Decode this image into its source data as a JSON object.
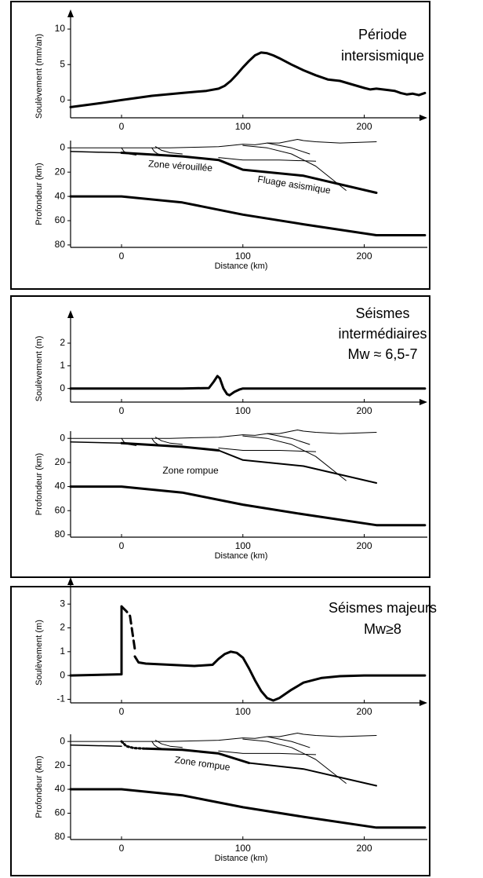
{
  "chart_data": [
    {
      "type": "line",
      "title": [
        "Période",
        "intersismique"
      ],
      "ylabel": "Soulèvement  (mm/an)",
      "arrows": true,
      "color": "#000",
      "xlim": [
        -42,
        252
      ],
      "xticks": [
        0,
        100,
        200
      ],
      "ylim": [
        -2.5,
        11
      ],
      "yticks": [
        0,
        5,
        10
      ],
      "series": [
        {
          "x": [
            -42,
            -20,
            0,
            25,
            50,
            70,
            80,
            85,
            90,
            95,
            100,
            105,
            110,
            115,
            120,
            125,
            130,
            140,
            150,
            160,
            170,
            180,
            190,
            200,
            205,
            210,
            220,
            225,
            230,
            235,
            240,
            245,
            250
          ],
          "values": [
            -1,
            -0.5,
            0,
            0.6,
            1,
            1.3,
            1.6,
            2,
            2.7,
            3.6,
            4.6,
            5.5,
            6.3,
            6.7,
            6.6,
            6.3,
            5.9,
            5,
            4.2,
            3.5,
            2.9,
            2.7,
            2.2,
            1.7,
            1.5,
            1.6,
            1.4,
            1.3,
            1,
            0.8,
            0.9,
            0.7,
            1
          ],
          "width": 3,
          "dash": "none"
        }
      ]
    },
    {
      "type": "line",
      "ylabel": "Profondeur (km)",
      "xlabel": "Distance (km)",
      "arrows": false,
      "invert_y": true,
      "color": "#000",
      "annotations": [
        "Zone vérouillée",
        "Fluage asismique"
      ],
      "xlim": [
        -42,
        252
      ],
      "xticks": [
        0,
        100,
        200
      ],
      "ylim": [
        -6,
        82
      ],
      "yticks": [
        0,
        20,
        40,
        60,
        80
      ],
      "series": [
        {
          "x": [
            -42,
            20,
            40,
            60,
            80,
            90,
            100,
            110,
            120,
            130,
            140,
            145,
            150,
            160,
            180,
            210
          ],
          "values": [
            0,
            0,
            0,
            -0.5,
            -1,
            -2,
            -3,
            -2.5,
            -4,
            -4,
            -6,
            -7,
            -6,
            -5,
            -4,
            -5
          ],
          "width": 1,
          "dash": "none"
        },
        {
          "x": [
            0,
            2,
            6,
            12
          ],
          "values": [
            0,
            3,
            5,
            6
          ],
          "width": 1,
          "dash": "none"
        },
        {
          "x": [
            25,
            27,
            30,
            34
          ],
          "values": [
            0,
            3,
            5,
            6
          ],
          "width": 1,
          "dash": "none"
        },
        {
          "x": [
            28,
            33,
            40,
            50
          ],
          "values": [
            -1,
            2,
            4,
            5
          ],
          "width": 1,
          "dash": "none"
        },
        {
          "x": [
            100,
            120,
            140,
            160,
            185
          ],
          "values": [
            -2,
            0,
            5,
            15,
            35
          ],
          "width": 1,
          "dash": "none"
        },
        {
          "x": [
            80,
            100,
            130,
            160
          ],
          "values": [
            8,
            10,
            10,
            11
          ],
          "width": 1,
          "dash": "none"
        },
        {
          "x": [
            120,
            140,
            155
          ],
          "values": [
            -4,
            0,
            5
          ],
          "width": 1,
          "dash": "none"
        },
        {
          "x": [
            -42,
            0
          ],
          "values": [
            3,
            4
          ],
          "width": 1.5,
          "dash": "none"
        },
        {
          "x": [
            0,
            50,
            80,
            100,
            150,
            210
          ],
          "values": [
            4,
            7,
            10,
            18,
            23,
            37
          ],
          "width": 3,
          "dash": "none"
        },
        {
          "x": [
            -42,
            0,
            50,
            100,
            150,
            210,
            250
          ],
          "values": [
            40,
            40,
            45,
            55,
            63,
            72,
            72
          ],
          "width": 3,
          "dash": "none"
        }
      ]
    },
    {
      "type": "line",
      "title": [
        "Séismes",
        "intermédiaires",
        "Mw ≈ 6,5-7"
      ],
      "ylabel": "Soulèvement (m)",
      "arrows": true,
      "color": "#000",
      "xlim": [
        -42,
        252
      ],
      "xticks": [
        0,
        100,
        200
      ],
      "ylim": [
        -0.6,
        2.9
      ],
      "yticks": [
        0,
        1,
        2
      ],
      "series": [
        {
          "x": [
            -42,
            0,
            50,
            72,
            76,
            79,
            81,
            84,
            87,
            89,
            93,
            97,
            100,
            150,
            250
          ],
          "values": [
            0,
            0,
            0,
            0.02,
            0.3,
            0.55,
            0.45,
            0,
            -0.25,
            -0.3,
            -0.15,
            -0.05,
            0,
            0,
            0
          ],
          "width": 3,
          "dash": "none"
        }
      ]
    },
    {
      "type": "line",
      "ylabel": "Profondeur (km)",
      "xlabel": "Distance (km)",
      "arrows": false,
      "invert_y": true,
      "color": "#000",
      "annotations": [
        "Zone rompue"
      ],
      "xlim": [
        -42,
        252
      ],
      "xticks": [
        0,
        100,
        200
      ],
      "ylim": [
        -6,
        82
      ],
      "yticks": [
        0,
        20,
        40,
        60,
        80
      ],
      "series": [
        {
          "x": [
            -42,
            20,
            40,
            60,
            80,
            90,
            100,
            110,
            120,
            130,
            140,
            145,
            150,
            160,
            180,
            210
          ],
          "values": [
            0,
            0,
            0,
            -0.5,
            -1,
            -2,
            -3,
            -2.5,
            -4,
            -4,
            -6,
            -7,
            -6,
            -5,
            -4,
            -5
          ],
          "width": 1,
          "dash": "none"
        },
        {
          "x": [
            0,
            2,
            6,
            12
          ],
          "values": [
            0,
            3,
            5,
            6
          ],
          "width": 1,
          "dash": "none"
        },
        {
          "x": [
            25,
            27,
            30,
            34
          ],
          "values": [
            0,
            3,
            5,
            6
          ],
          "width": 1,
          "dash": "none"
        },
        {
          "x": [
            28,
            33,
            40,
            50
          ],
          "values": [
            -1,
            2,
            4,
            5
          ],
          "width": 1,
          "dash": "none"
        },
        {
          "x": [
            100,
            120,
            140,
            160,
            185
          ],
          "values": [
            -2,
            0,
            5,
            15,
            35
          ],
          "width": 1,
          "dash": "none"
        },
        {
          "x": [
            80,
            100,
            130,
            160
          ],
          "values": [
            8,
            10,
            10,
            11
          ],
          "width": 1,
          "dash": "none"
        },
        {
          "x": [
            120,
            140,
            155
          ],
          "values": [
            -4,
            0,
            5
          ],
          "width": 1,
          "dash": "none"
        },
        {
          "x": [
            -42,
            0
          ],
          "values": [
            3,
            4
          ],
          "width": 1.5,
          "dash": "none"
        },
        {
          "x": [
            0,
            50,
            80
          ],
          "values": [
            4,
            7,
            10
          ],
          "width": 3,
          "dash": "none"
        },
        {
          "x": [
            80,
            100,
            150,
            210
          ],
          "values": [
            10,
            18,
            23,
            37
          ],
          "width": 2,
          "dash": "none"
        },
        {
          "x": [
            -42,
            0,
            50,
            100,
            150,
            210,
            250
          ],
          "values": [
            40,
            40,
            45,
            55,
            63,
            72,
            72
          ],
          "width": 3,
          "dash": "none"
        }
      ]
    },
    {
      "type": "line",
      "title": [
        "Séismes majeurs",
        "Mw≥8"
      ],
      "ylabel": "Soulèvement (m)",
      "arrows": true,
      "color": "#000",
      "xlim": [
        -42,
        252
      ],
      "xticks": [
        0,
        100,
        200
      ],
      "ylim": [
        -1.15,
        3.6
      ],
      "yticks": [
        -1,
        0,
        1,
        2,
        3
      ],
      "series": [
        {
          "x": [
            -42,
            0,
            0
          ],
          "values": [
            0,
            0.05,
            2.9
          ],
          "width": 3,
          "dash": "none"
        },
        {
          "x": [
            0,
            4,
            7,
            9,
            11
          ],
          "values": [
            2.9,
            2.7,
            2.5,
            1.8,
            1.1
          ],
          "width": 3,
          "dash": "10,6"
        },
        {
          "x": [
            11,
            14,
            20,
            40,
            60,
            75,
            80,
            85,
            90,
            95,
            100,
            105,
            110,
            115,
            120,
            125,
            130,
            140,
            150,
            165,
            180,
            200,
            250
          ],
          "values": [
            0.8,
            0.55,
            0.5,
            0.45,
            0.4,
            0.45,
            0.7,
            0.9,
            1,
            0.95,
            0.75,
            0.3,
            -0.2,
            -0.65,
            -0.95,
            -1.05,
            -0.95,
            -0.6,
            -0.3,
            -0.1,
            -0.03,
            0,
            0
          ],
          "width": 3,
          "dash": "none"
        }
      ]
    },
    {
      "type": "line",
      "ylabel": "Profondeur (km)",
      "xlabel": "Distance (km)",
      "arrows": false,
      "invert_y": true,
      "color": "#000",
      "annotations": [
        "Zone rompue"
      ],
      "xlim": [
        -42,
        252
      ],
      "xticks": [
        0,
        100,
        200
      ],
      "ylim": [
        -6,
        82
      ],
      "yticks": [
        0,
        20,
        40,
        60,
        80
      ],
      "series": [
        {
          "x": [
            -42,
            20,
            40,
            60,
            80,
            90,
            100,
            110,
            120,
            130,
            140,
            145,
            150,
            160,
            180,
            210
          ],
          "values": [
            0,
            0,
            0,
            -0.5,
            -1,
            -2,
            -3,
            -2.5,
            -4,
            -4,
            -6,
            -7,
            -6,
            -5,
            -4,
            -5
          ],
          "width": 1,
          "dash": "none"
        },
        {
          "x": [
            25,
            27,
            30,
            34
          ],
          "values": [
            0,
            3,
            5,
            6
          ],
          "width": 1,
          "dash": "none"
        },
        {
          "x": [
            28,
            33,
            40,
            50
          ],
          "values": [
            -1,
            2,
            4,
            5
          ],
          "width": 1,
          "dash": "none"
        },
        {
          "x": [
            100,
            120,
            140,
            160,
            185
          ],
          "values": [
            -2,
            0,
            5,
            15,
            35
          ],
          "width": 1,
          "dash": "none"
        },
        {
          "x": [
            80,
            100,
            130,
            160
          ],
          "values": [
            8,
            10,
            10,
            11
          ],
          "width": 1,
          "dash": "none"
        },
        {
          "x": [
            120,
            140,
            155
          ],
          "values": [
            -4,
            0,
            5
          ],
          "width": 1,
          "dash": "none"
        },
        {
          "x": [
            -42,
            0
          ],
          "values": [
            3,
            4
          ],
          "width": 1.5,
          "dash": "none"
        },
        {
          "x": [
            0,
            4,
            10,
            20
          ],
          "values": [
            0,
            4,
            5.5,
            6
          ],
          "width": 3,
          "dash": "2,3"
        },
        {
          "x": [
            20,
            50,
            80,
            105
          ],
          "values": [
            6,
            7,
            10,
            18
          ],
          "width": 3,
          "dash": "none"
        },
        {
          "x": [
            105,
            150,
            210
          ],
          "values": [
            18,
            23,
            37
          ],
          "width": 2,
          "dash": "none"
        },
        {
          "x": [
            -42,
            0,
            50,
            100,
            150,
            210,
            250
          ],
          "values": [
            40,
            40,
            45,
            55,
            63,
            72,
            72
          ],
          "width": 3,
          "dash": "none"
        }
      ]
    }
  ]
}
